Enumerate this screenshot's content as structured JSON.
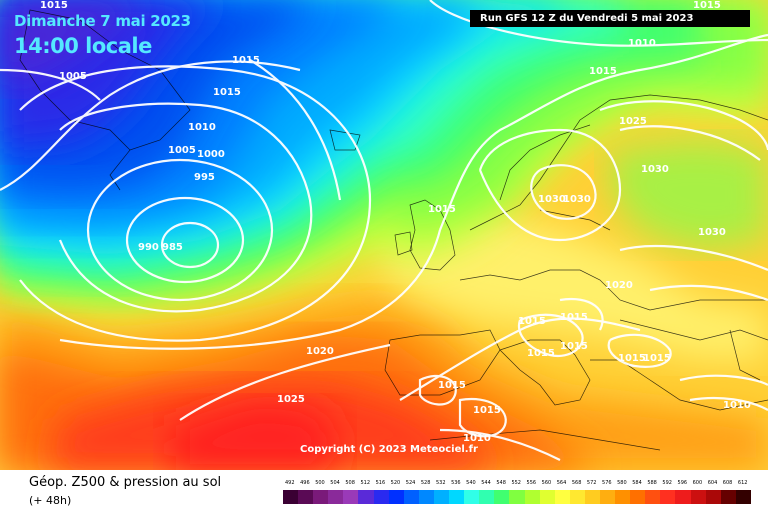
{
  "title": {
    "date": "Dimanche 7 mai 2023",
    "time": "14:00 locale"
  },
  "run_info": "Run GFS 12 Z du Vendredi 5 mai 2023",
  "copyright": "Copyright (C) 2023 Meteociel.fr",
  "legend": {
    "title": "Géop. Z500 & pression au sol",
    "subtitle": "(+ 48h)",
    "scale_values": [
      "492",
      "496",
      "500",
      "504",
      "508",
      "512",
      "516",
      "520",
      "524",
      "528",
      "532",
      "536",
      "540",
      "544",
      "548",
      "552",
      "556",
      "560",
      "564",
      "568",
      "572",
      "576",
      "580",
      "584",
      "588",
      "592",
      "596",
      "600",
      "604",
      "608",
      "612"
    ],
    "scale_colors": [
      "#3a0033",
      "#5a0a55",
      "#7a1a7a",
      "#8a2a9a",
      "#9a3ab8",
      "#5a2ad8",
      "#2a2af0",
      "#0030ff",
      "#0060ff",
      "#0088ff",
      "#00b0ff",
      "#00d8ff",
      "#30ffe8",
      "#30ffb0",
      "#40ff70",
      "#80ff40",
      "#b0ff30",
      "#e0ff30",
      "#ffff40",
      "#ffe830",
      "#ffcc20",
      "#ffae10",
      "#ff9000",
      "#ff7000",
      "#ff5010",
      "#ff3020",
      "#ee1c1c",
      "#cc1010",
      "#aa0808",
      "#660000",
      "#330000"
    ]
  },
  "isobar_labels": [
    "1015",
    "1005",
    "1015",
    "1015",
    "1010",
    "1005",
    "1000",
    "995",
    "990",
    "985",
    "1015",
    "1020",
    "1025",
    "1015",
    "1010",
    "1015",
    "1025",
    "1030",
    "1030",
    "1030",
    "1030",
    "1020",
    "1015",
    "1015",
    "1015",
    "1015",
    "1015",
    "1015",
    "1015",
    "1015",
    "1010",
    "1010"
  ]
}
